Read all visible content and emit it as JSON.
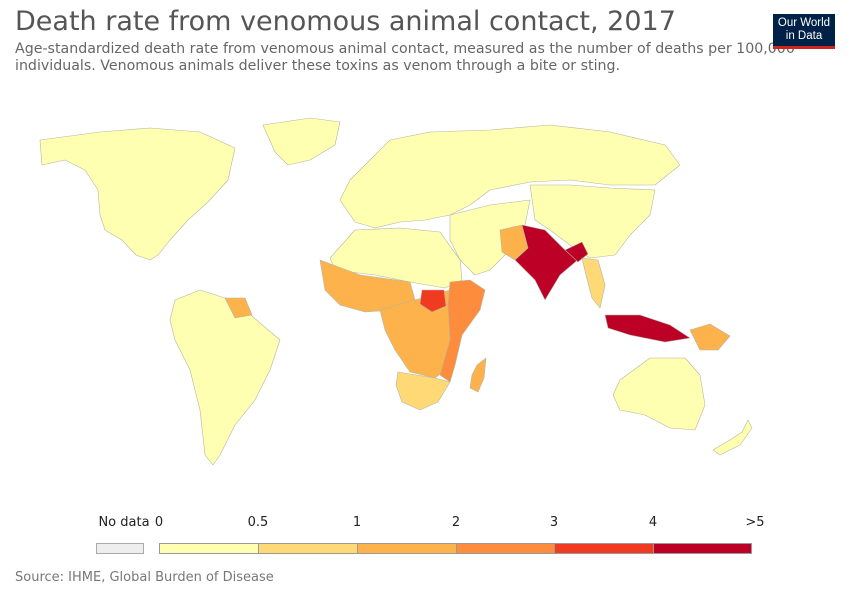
{
  "header": {
    "title": "Death rate from venomous animal contact, 2017",
    "subtitle": "Age-standardized death rate from venomous animal contact, measured as the number of deaths per 100,000 individuals. Venomous animals deliver these toxins as venom through a bite or sting."
  },
  "logo": {
    "line1": "Our World",
    "line2": "in Data"
  },
  "legend": {
    "no_data_label": "No data",
    "no_data_color": "#eeeeee",
    "tick_labels": [
      "0",
      "0.5",
      "1",
      "2",
      "3",
      "4",
      ">5"
    ],
    "bins": [
      {
        "from": 0,
        "to": 0.5,
        "color": "#ffffb2"
      },
      {
        "from": 0.5,
        "to": 1,
        "color": "#fed976"
      },
      {
        "from": 1,
        "to": 2,
        "color": "#feb24c"
      },
      {
        "from": 2,
        "to": 3,
        "color": "#fd8d3c"
      },
      {
        "from": 3,
        "to": 4,
        "color": "#f03b20"
      },
      {
        "from": 4,
        "to": 5,
        "color": "#bd0026"
      }
    ]
  },
  "regions": [
    {
      "name": "North America",
      "bin": 0
    },
    {
      "name": "Greenland",
      "bin": 0
    },
    {
      "name": "South America",
      "bin": 0
    },
    {
      "name": "Europe and Russia",
      "bin": 0
    },
    {
      "name": "Middle East and Central Asia",
      "bin": 0
    },
    {
      "name": "China and East Asia",
      "bin": 0
    },
    {
      "name": "Australia",
      "bin": 0
    },
    {
      "name": "New Zealand",
      "bin": 0
    },
    {
      "name": "North Africa",
      "bin": 0
    },
    {
      "name": "West Africa",
      "bin": 2
    },
    {
      "name": "Central and Southern Africa",
      "bin": 2
    },
    {
      "name": "Southern Africa",
      "bin": 1
    },
    {
      "name": "East Africa",
      "bin": 3
    },
    {
      "name": "South Sudan",
      "bin": 4
    },
    {
      "name": "Madagascar",
      "bin": 2
    },
    {
      "name": "Pakistan",
      "bin": 2
    },
    {
      "name": "India",
      "bin": 5
    },
    {
      "name": "Bangladesh",
      "bin": 5
    },
    {
      "name": "Myanmar and Thailand",
      "bin": 1
    },
    {
      "name": "Papua New Guinea",
      "bin": 5
    },
    {
      "name": "Guyana and Suriname",
      "bin": 2
    }
  ],
  "source": "Source: IHME, Global Burden of Disease"
}
